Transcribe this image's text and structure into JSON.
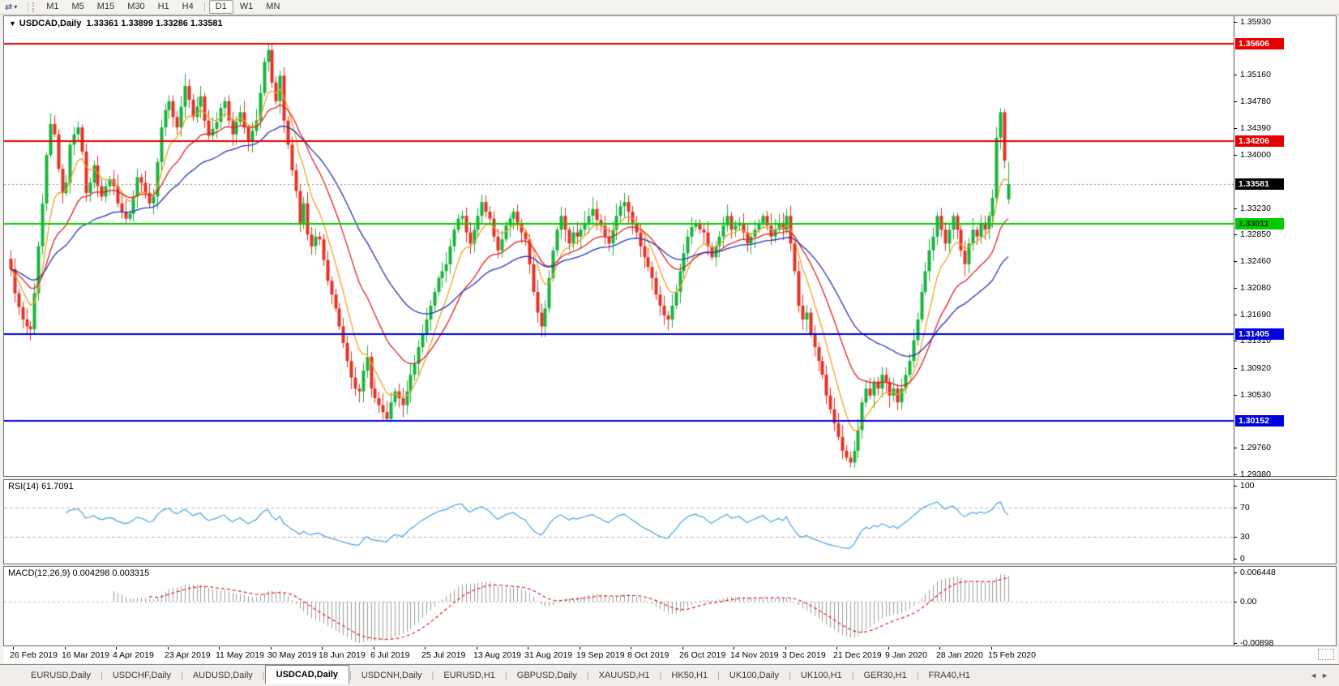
{
  "toolbar": {
    "icon": "⇄",
    "caret": "▾",
    "timeframes": [
      "M1",
      "M5",
      "M15",
      "M30",
      "H1",
      "H4",
      "D1",
      "W1",
      "MN"
    ],
    "active_timeframe": "D1"
  },
  "chart": {
    "collapse_icon": "▼",
    "symbol_title": "USDCAD,Daily",
    "ohlc_text": "1.33361 1.33899 1.33286 1.33581"
  },
  "chart_data": {
    "type": "candlestick",
    "symbol": "USDCAD",
    "timeframe": "Daily",
    "last_bar": {
      "open": 1.33361,
      "high": 1.33899,
      "low": 1.33286,
      "close": 1.33581
    },
    "current_price": "1.33581",
    "y_range": [
      1.29355,
      1.3601
    ],
    "y_ticks": [
      "1.35930",
      "1.35160",
      "1.34780",
      "1.34390",
      "1.34000",
      "1.33230",
      "1.32850",
      "1.32460",
      "1.32080",
      "1.31690",
      "1.31310",
      "1.30920",
      "1.30530",
      "1.29760",
      "1.29380"
    ],
    "x_labels": [
      "26 Feb 2019",
      "16 Mar 2019",
      "4 Apr 2019",
      "23 Apr 2019",
      "11 May 2019",
      "30 May 2019",
      "18 Jun 2019",
      "6 Jul 2019",
      "25 Jul 2019",
      "13 Aug 2019",
      "31 Aug 2019",
      "19 Sep 2019",
      "8 Oct 2019",
      "26 Oct 2019",
      "14 Nov 2019",
      "3 Dec 2019",
      "21 Dec 2019",
      "9 Jan 2020",
      "28 Jan 2020",
      "15 Feb 2020"
    ],
    "bars_per_label": 13,
    "num_bars": 253,
    "candle_up_color": "#18b33c",
    "candle_down_color": "#e53226",
    "current_line_color": "#8a8a8a",
    "current_tag_bg": "#000000",
    "h_lines": [
      {
        "price": 1.35606,
        "label": "1.35606",
        "color": "#e60000",
        "text": "#ffffff",
        "width": 2
      },
      {
        "price": 1.34206,
        "label": "1.34206",
        "color": "#e60000",
        "text": "#ffffff",
        "width": 2
      },
      {
        "price": 1.33011,
        "label": "1.33011",
        "color": "#00cc00",
        "text": "#003300",
        "width": 2
      },
      {
        "price": 1.31405,
        "label": "1.31405",
        "color": "#0000dd",
        "text": "#ffffff",
        "width": 2
      },
      {
        "price": 1.30152,
        "label": "1.30152",
        "color": "#0000dd",
        "text": "#ffffff",
        "width": 2
      }
    ],
    "ma_lines": [
      {
        "name": "fast",
        "period": 8,
        "color": "#f0a127"
      },
      {
        "name": "medium",
        "period": 20,
        "color": "#e02020"
      },
      {
        "name": "slow",
        "period": 40,
        "color": "#2433b8"
      }
    ],
    "closes": [
      [
        0,
        1.3235
      ],
      [
        1,
        1.32
      ],
      [
        2,
        1.318
      ],
      [
        3,
        1.3162
      ],
      [
        4,
        1.3152
      ],
      [
        5,
        1.3148
      ],
      [
        6,
        1.32
      ],
      [
        7,
        1.3268
      ],
      [
        8,
        1.333
      ],
      [
        9,
        1.34
      ],
      [
        10,
        1.3445
      ],
      [
        11,
        1.343
      ],
      [
        12,
        1.338
      ],
      [
        13,
        1.3345
      ],
      [
        14,
        1.336
      ],
      [
        15,
        1.3415
      ],
      [
        16,
        1.343
      ],
      [
        17,
        1.344
      ],
      [
        18,
        1.3405
      ],
      [
        19,
        1.3345
      ],
      [
        20,
        1.336
      ],
      [
        21,
        1.3385
      ],
      [
        22,
        1.3355
      ],
      [
        23,
        1.334
      ],
      [
        24,
        1.3355
      ],
      [
        25,
        1.3365
      ],
      [
        26,
        1.3355
      ],
      [
        27,
        1.333
      ],
      [
        28,
        1.3318
      ],
      [
        29,
        1.3308
      ],
      [
        30,
        1.3315
      ],
      [
        31,
        1.334
      ],
      [
        32,
        1.3368
      ],
      [
        33,
        1.336
      ],
      [
        34,
        1.3345
      ],
      [
        35,
        1.333
      ],
      [
        36,
        1.334
      ],
      [
        37,
        1.339
      ],
      [
        38,
        1.344
      ],
      [
        39,
        1.3465
      ],
      [
        40,
        1.3478
      ],
      [
        41,
        1.3455
      ],
      [
        42,
        1.344
      ],
      [
        43,
        1.347
      ],
      [
        44,
        1.35
      ],
      [
        45,
        1.348
      ],
      [
        46,
        1.3455
      ],
      [
        47,
        1.347
      ],
      [
        48,
        1.3485
      ],
      [
        49,
        1.345
      ],
      [
        50,
        1.3428
      ],
      [
        51,
        1.3438
      ],
      [
        52,
        1.3448
      ],
      [
        53,
        1.3468
      ],
      [
        54,
        1.3478
      ],
      [
        55,
        1.345
      ],
      [
        56,
        1.343
      ],
      [
        57,
        1.3448
      ],
      [
        58,
        1.3462
      ],
      [
        59,
        1.344
      ],
      [
        60,
        1.342
      ],
      [
        61,
        1.3435
      ],
      [
        62,
        1.345
      ],
      [
        63,
        1.349
      ],
      [
        64,
        1.3535
      ],
      [
        65,
        1.3552
      ],
      [
        66,
        1.3505
      ],
      [
        67,
        1.3478
      ],
      [
        68,
        1.3515
      ],
      [
        69,
        1.345
      ],
      [
        70,
        1.3415
      ],
      [
        71,
        1.3378
      ],
      [
        72,
        1.3348
      ],
      [
        73,
        1.3302
      ],
      [
        74,
        1.333
      ],
      [
        75,
        1.3285
      ],
      [
        76,
        1.3268
      ],
      [
        77,
        1.3282
      ],
      [
        78,
        1.3278
      ],
      [
        79,
        1.3248
      ],
      [
        80,
        1.3218
      ],
      [
        81,
        1.3198
      ],
      [
        82,
        1.3178
      ],
      [
        83,
        1.3152
      ],
      [
        84,
        1.3128
      ],
      [
        85,
        1.3102
      ],
      [
        86,
        1.3078
      ],
      [
        87,
        1.3062
      ],
      [
        88,
        1.3058
      ],
      [
        89,
        1.3088
      ],
      [
        90,
        1.3108
      ],
      [
        91,
        1.3062
      ],
      [
        92,
        1.3048
      ],
      [
        93,
        1.3038
      ],
      [
        94,
        1.3028
      ],
      [
        95,
        1.3018
      ],
      [
        96,
        1.3042
      ],
      [
        97,
        1.3058
      ],
      [
        98,
        1.3048
      ],
      [
        99,
        1.3038
      ],
      [
        100,
        1.3058
      ],
      [
        101,
        1.3082
      ],
      [
        102,
        1.3098
      ],
      [
        103,
        1.3122
      ],
      [
        104,
        1.3142
      ],
      [
        105,
        1.3162
      ],
      [
        106,
        1.3182
      ],
      [
        107,
        1.3202
      ],
      [
        108,
        1.3222
      ],
      [
        109,
        1.3232
      ],
      [
        110,
        1.3242
      ],
      [
        111,
        1.3268
      ],
      [
        112,
        1.3292
      ],
      [
        113,
        1.3308
      ],
      [
        114,
        1.3312
      ],
      [
        115,
        1.3288
      ],
      [
        116,
        1.3272
      ],
      [
        117,
        1.3292
      ],
      [
        118,
        1.3312
      ],
      [
        119,
        1.3332
      ],
      [
        120,
        1.3318
      ],
      [
        121,
        1.3308
      ],
      [
        122,
        1.3282
      ],
      [
        123,
        1.3262
      ],
      [
        124,
        1.3278
      ],
      [
        125,
        1.3298
      ],
      [
        126,
        1.3308
      ],
      [
        127,
        1.3318
      ],
      [
        128,
        1.3302
      ],
      [
        129,
        1.3288
      ],
      [
        130,
        1.3278
      ],
      [
        131,
        1.3242
      ],
      [
        132,
        1.3202
      ],
      [
        133,
        1.3172
      ],
      [
        134,
        1.3152
      ],
      [
        135,
        1.3178
      ],
      [
        136,
        1.3222
      ],
      [
        137,
        1.3262
      ],
      [
        138,
        1.3292
      ],
      [
        139,
        1.3312
      ],
      [
        140,
        1.3292
      ],
      [
        141,
        1.3272
      ],
      [
        142,
        1.3288
      ],
      [
        143,
        1.3282
      ],
      [
        144,
        1.3292
      ],
      [
        145,
        1.3302
      ],
      [
        146,
        1.3312
      ],
      [
        147,
        1.3322
      ],
      [
        148,
        1.3306
      ],
      [
        149,
        1.3298
      ],
      [
        150,
        1.3282
      ],
      [
        151,
        1.3272
      ],
      [
        152,
        1.3292
      ],
      [
        153,
        1.3312
      ],
      [
        154,
        1.3326
      ],
      [
        155,
        1.3332
      ],
      [
        156,
        1.3318
      ],
      [
        157,
        1.3302
      ],
      [
        158,
        1.3288
      ],
      [
        159,
        1.3268
      ],
      [
        160,
        1.3252
      ],
      [
        161,
        1.3238
      ],
      [
        162,
        1.3222
      ],
      [
        163,
        1.3198
      ],
      [
        164,
        1.3182
      ],
      [
        165,
        1.3168
      ],
      [
        166,
        1.3162
      ],
      [
        167,
        1.3182
      ],
      [
        168,
        1.3202
      ],
      [
        169,
        1.3232
      ],
      [
        170,
        1.3258
      ],
      [
        171,
        1.3282
      ],
      [
        172,
        1.3296
      ],
      [
        173,
        1.3302
      ],
      [
        174,
        1.3292
      ],
      [
        175,
        1.3288
      ],
      [
        176,
        1.3268
      ],
      [
        177,
        1.3252
      ],
      [
        178,
        1.3268
      ],
      [
        179,
        1.3282
      ],
      [
        180,
        1.3298
      ],
      [
        181,
        1.3312
      ],
      [
        182,
        1.3292
      ],
      [
        183,
        1.3298
      ],
      [
        184,
        1.3302
      ],
      [
        185,
        1.3288
      ],
      [
        186,
        1.3272
      ],
      [
        187,
        1.3282
      ],
      [
        188,
        1.3292
      ],
      [
        189,
        1.3302
      ],
      [
        190,
        1.3312
      ],
      [
        191,
        1.3298
      ],
      [
        192,
        1.3282
      ],
      [
        193,
        1.3292
      ],
      [
        194,
        1.3302
      ],
      [
        195,
        1.3292
      ],
      [
        196,
        1.3312
      ],
      [
        197,
        1.3272
      ],
      [
        198,
        1.3232
      ],
      [
        199,
        1.3182
      ],
      [
        200,
        1.3162
      ],
      [
        201,
        1.3172
      ],
      [
        202,
        1.3142
      ],
      [
        203,
        1.3122
      ],
      [
        204,
        1.3102
      ],
      [
        205,
        1.3082
      ],
      [
        206,
        1.3052
      ],
      [
        207,
        1.3032
      ],
      [
        208,
        1.3012
      ],
      [
        209,
        1.2992
      ],
      [
        210,
        1.2972
      ],
      [
        211,
        1.2962
      ],
      [
        212,
        1.2955
      ],
      [
        213,
        1.2972
      ],
      [
        214,
        1.3002
      ],
      [
        215,
        1.3042
      ],
      [
        216,
        1.3062
      ],
      [
        217,
        1.3052
      ],
      [
        218,
        1.3072
      ],
      [
        219,
        1.3062
      ],
      [
        220,
        1.3082
      ],
      [
        221,
        1.3072
      ],
      [
        222,
        1.3052
      ],
      [
        223,
        1.3062
      ],
      [
        224,
        1.3042
      ],
      [
        225,
        1.3062
      ],
      [
        226,
        1.3082
      ],
      [
        227,
        1.3102
      ],
      [
        228,
        1.3132
      ],
      [
        229,
        1.3162
      ],
      [
        230,
        1.3202
      ],
      [
        231,
        1.3232
      ],
      [
        232,
        1.3262
      ],
      [
        233,
        1.3282
      ],
      [
        234,
        1.3312
      ],
      [
        235,
        1.3292
      ],
      [
        236,
        1.3272
      ],
      [
        237,
        1.3292
      ],
      [
        238,
        1.3312
      ],
      [
        239,
        1.3292
      ],
      [
        240,
        1.3262
      ],
      [
        241,
        1.3242
      ],
      [
        242,
        1.3272
      ],
      [
        243,
        1.3292
      ],
      [
        244,
        1.3282
      ],
      [
        245,
        1.3302
      ],
      [
        246,
        1.3292
      ],
      [
        247,
        1.3312
      ],
      [
        248,
        1.3338
      ],
      [
        249,
        1.3425
      ],
      [
        250,
        1.3462
      ],
      [
        251,
        1.3392
      ],
      [
        252,
        1.33581
      ]
    ],
    "wick_overrides": {
      "65": {
        "h": 1.35606
      },
      "95": {
        "l": 1.3016
      },
      "212": {
        "l": 1.2948
      },
      "250": {
        "h": 1.3468
      },
      "252": {
        "o": 1.33361,
        "h": 1.33899,
        "l": 1.33286,
        "c": 1.33581
      }
    },
    "indicators": {
      "rsi": {
        "label": "RSI(14) 61.7091",
        "period": 14,
        "value": 61.7091,
        "levels": [
          70,
          30
        ],
        "ticks": [
          "100",
          "70",
          "30",
          "0"
        ],
        "tick_values": [
          100,
          70,
          30,
          0
        ],
        "color": "#4aa3df",
        "level_line_color": "#b4b4b4"
      },
      "macd": {
        "label": "MACD(12,26,9) 0.004298 0.003315",
        "fast": 12,
        "slow": 26,
        "signal": 9,
        "macd_value": 0.004298,
        "signal_value": 0.003315,
        "ticks": [
          "0.006448",
          "0.00",
          "-0.00898"
        ],
        "tick_values": [
          0.006448,
          0.0,
          -0.00898
        ],
        "hist_color": "#9c9c9c",
        "signal_color": "#dd2222",
        "zero_line_color": "#c0c0c0"
      }
    }
  },
  "bottom_tabs": {
    "prev_icon": "◄",
    "next_icon": "►",
    "active": "USDCAD,Daily",
    "tabs": [
      "EURUSD,Daily",
      "USDCHF,Daily",
      "AUDUSD,Daily",
      "USDCAD,Daily",
      "USDCNH,Daily",
      "EURUSD,H1",
      "GBPUSD,Daily",
      "XAUUSD,H1",
      "HK50,H1",
      "UK100,Daily",
      "UK100,H1",
      "GER30,H1",
      "FRA40,H1"
    ]
  }
}
